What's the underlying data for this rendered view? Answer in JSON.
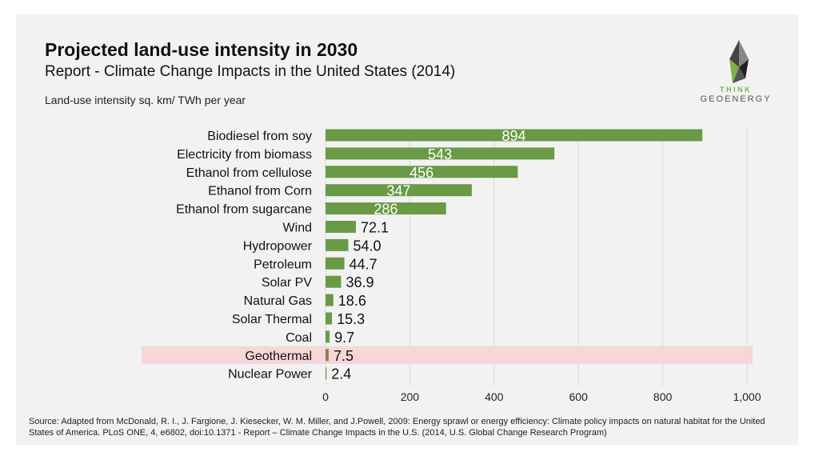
{
  "header": {
    "title": "Projected land-use intensity in 2030",
    "subtitle": "Report - Climate Change Impacts in the United States (2014)",
    "unit_label": "Land-use intensity sq. km/ TWh per year"
  },
  "logo": {
    "line1": "THINK",
    "line2": "GEOENERGY"
  },
  "colors": {
    "bar": "#6a9a45",
    "highlight_bar": "#8c7b5a",
    "highlight_band": "#f6d6d6",
    "grid": "#d9d9d9",
    "panel": "#f2f2f2"
  },
  "chart_data": {
    "type": "bar",
    "orientation": "horizontal",
    "title": "Projected land-use intensity in 2030",
    "xlabel": "",
    "ylabel": "Land-use intensity sq. km/ TWh per year",
    "xlim": [
      0,
      1000
    ],
    "x_ticks": [
      "0",
      "200",
      "400",
      "600",
      "800",
      "1,000"
    ],
    "x_tick_values": [
      0,
      200,
      400,
      600,
      800,
      1000
    ],
    "grid": true,
    "highlight": "Geothermal",
    "categories": [
      "Biodiesel from soy",
      "Electricity from biomass",
      "Ethanol from cellulose",
      "Ethanol from Corn",
      "Ethanol from sugarcane",
      "Wind",
      "Hydropower",
      "Petroleum",
      "Solar PV",
      "Natural Gas",
      "Solar Thermal",
      "Coal",
      "Geothermal",
      "Nuclear Power"
    ],
    "values": [
      894,
      543,
      456,
      347,
      286,
      72.1,
      54.0,
      44.7,
      36.9,
      18.6,
      15.3,
      9.7,
      7.5,
      2.4
    ],
    "labels": [
      "894",
      "543",
      "456",
      "347",
      "286",
      "72.1",
      "54.0",
      "44.7",
      "36.9",
      "18.6",
      "15.3",
      "9.7",
      "7.5",
      "2.4"
    ]
  },
  "source": "Source: Adapted from McDonald, R. I., J. Fargione, J. Kiesecker, W. M. Miller, and J.Powell, 2009: Energy sprawl or energy efficiency: Climate policy impacts on natural habitat for the United States of America. PLoS ONE, 4, e6802, doi:10.1371 - Report – Climate Change Impacts in the U.S. (2014, U.S. Global Change Research Program)"
}
